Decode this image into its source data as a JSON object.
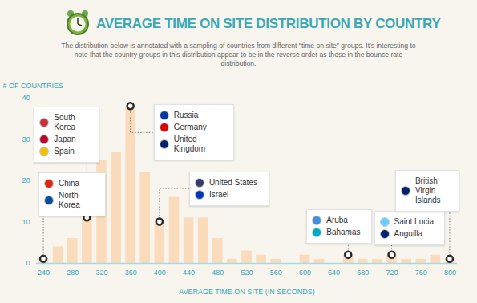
{
  "chart_data": {
    "type": "bar",
    "title": "AVERAGE TIME ON SITE DISTRIBUTION BY COUNTRY",
    "subtitle": "The distribution below is annotated with a sampling of countries from different \"time on site\" groups. It's interesting to note that the country groups in this distribution appear to be in the reverse order as those in the bounce rate distribution.",
    "x_label": "AVERAGE TIME ON SITE (IN SECONDS)",
    "y_label": "# OF COUNTRIES",
    "x": [
      240,
      260,
      280,
      300,
      320,
      340,
      360,
      380,
      400,
      420,
      440,
      460,
      480,
      500,
      520,
      540,
      560,
      580,
      600,
      620,
      640,
      660,
      680,
      700,
      720,
      740,
      760,
      780,
      800
    ],
    "values": [
      1,
      4,
      6,
      11,
      25,
      27,
      38,
      22,
      10,
      16,
      11,
      11,
      6,
      1,
      3,
      2,
      1,
      0,
      2,
      1,
      0,
      2,
      1,
      1,
      2,
      1,
      1,
      2,
      1
    ],
    "color": "#fadcbd",
    "xlim": [
      230,
      810
    ],
    "xticks": [
      240,
      280,
      320,
      360,
      400,
      440,
      480,
      520,
      560,
      600,
      640,
      680,
      720,
      760,
      800
    ],
    "ylim": [
      0,
      40
    ],
    "yticks": [
      0,
      10,
      20,
      30,
      40
    ],
    "grid": false,
    "annotations": [
      {
        "x": 240,
        "labels": [
          "China",
          "North Korea"
        ]
      },
      {
        "x": 300,
        "labels": [
          "South Korea",
          "Japan",
          "Spain"
        ]
      },
      {
        "x": 360,
        "labels": [
          "Russia",
          "Germany",
          "United Kingdom"
        ]
      },
      {
        "x": 400,
        "labels": [
          "United States",
          "Israel"
        ]
      },
      {
        "x": 660,
        "labels": [
          "Aruba",
          "Bahamas"
        ]
      },
      {
        "x": 720,
        "labels": [
          "Saint Lucia",
          "Anguilla"
        ]
      },
      {
        "x": 800,
        "labels": [
          "British Virgin Islands"
        ]
      }
    ]
  }
}
